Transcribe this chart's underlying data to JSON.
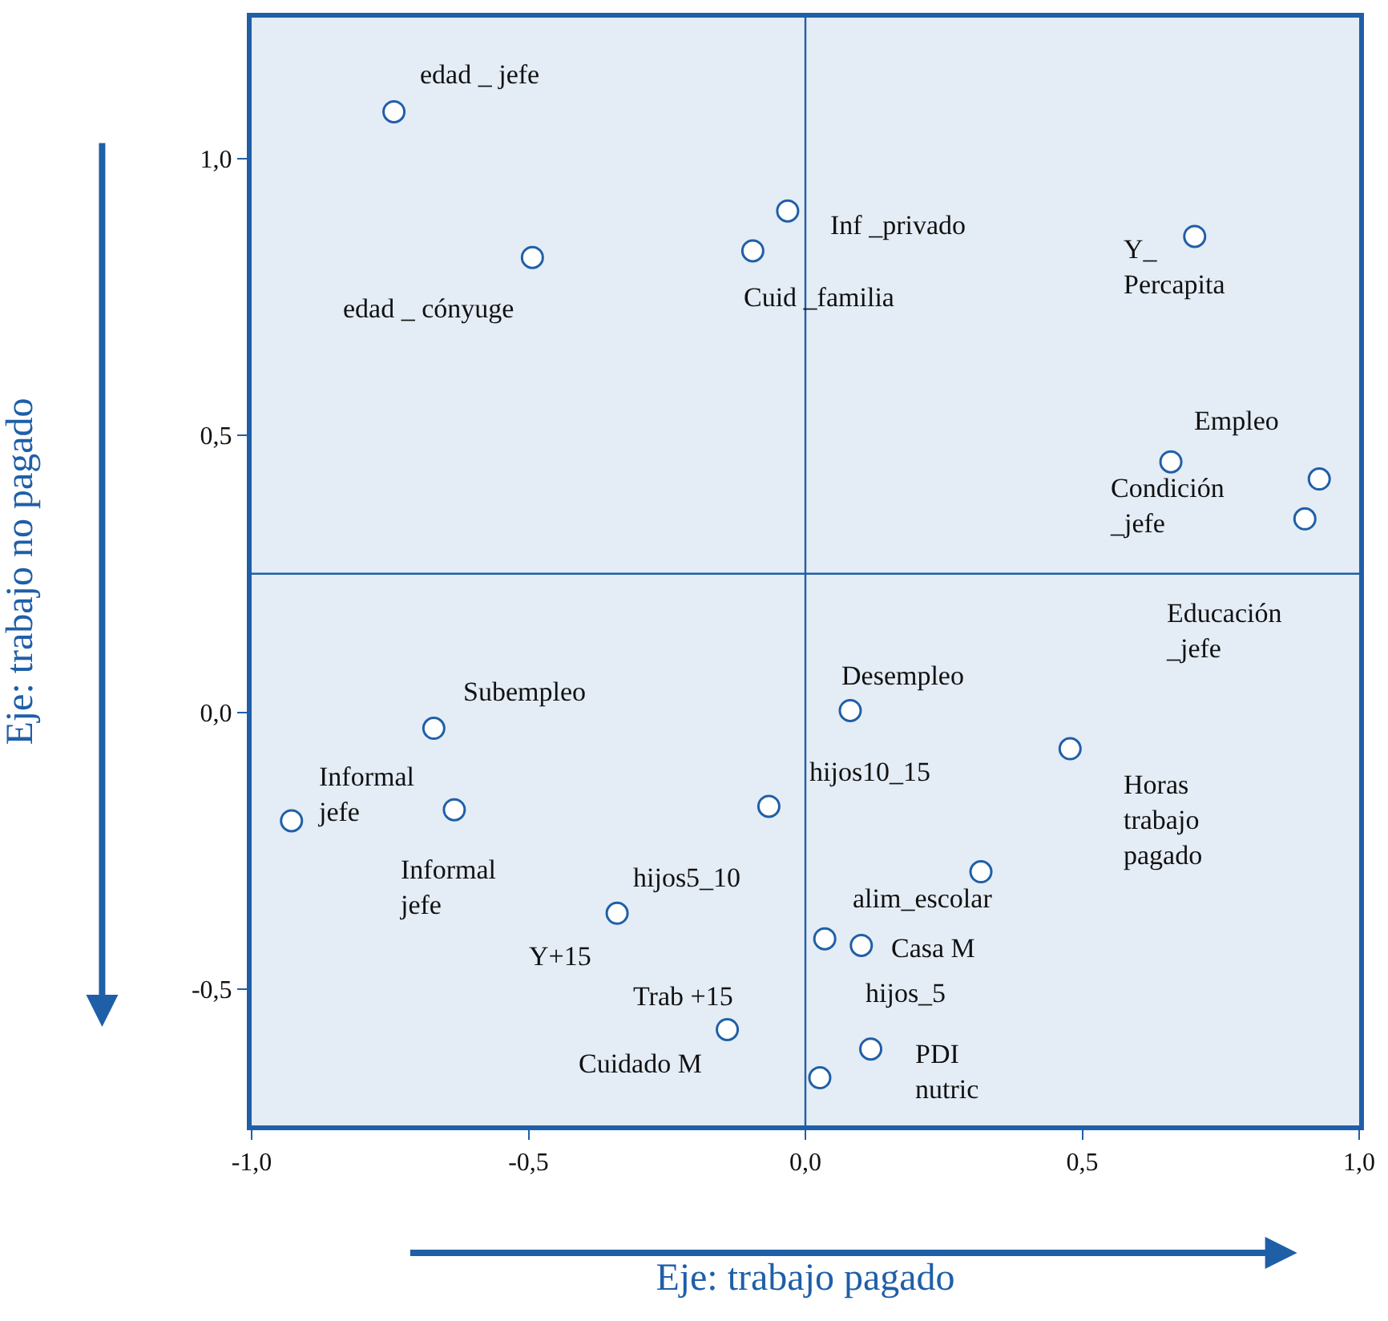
{
  "chart_data": {
    "type": "scatter",
    "xlabel": "Eje: trabajo pagado",
    "ylabel": "Eje: trabajo no pagado",
    "series": [
      {
        "color": "#1f5fa8",
        "x": [
          -0.743,
          -0.493,
          -0.095,
          -0.032,
          0.703,
          0.66,
          0.928,
          0.902,
          -0.671,
          -0.928,
          -0.634,
          -0.066,
          0.081,
          0.478,
          0.317,
          -0.34,
          0.101,
          0.035,
          -0.141,
          0.118,
          0.026
        ],
        "values": [
          1.084,
          0.821,
          0.833,
          0.905,
          0.859,
          0.452,
          0.421,
          0.349,
          -0.029,
          -0.196,
          -0.176,
          -0.17,
          0.003,
          -0.066,
          -0.288,
          -0.363,
          -0.421,
          -0.409,
          -0.573,
          -0.608,
          -0.66
        ]
      }
    ],
    "marker": "circle",
    "xlim": [
      -1.0,
      1.0
    ],
    "ylim": [
      -0.746,
      1.254
    ],
    "xticks": [
      {
        "value": -1.0,
        "label": "-1,0"
      },
      {
        "value": -0.5,
        "label": "-0,5"
      },
      {
        "value": 0.0,
        "label": "0,0"
      },
      {
        "value": 0.5,
        "label": "0,5"
      },
      {
        "value": 1.0,
        "label": "1,0"
      }
    ],
    "yticks": [
      {
        "value": -0.5,
        "label": "-0,5"
      },
      {
        "value": 0.0,
        "label": "0,0"
      },
      {
        "value": 0.5,
        "label": "0,5"
      },
      {
        "value": 1.0,
        "label": "1,0"
      }
    ],
    "ref_lines": [
      {
        "axis": "x",
        "value": 0.0,
        "color": "#1f5fa8"
      },
      {
        "axis": "y",
        "value": 0.25,
        "color": "#1f5fa8"
      }
    ],
    "grid": false,
    "annotations": [
      "edad _ jefe",
      "edad _ cónyuge",
      "Inf _privado",
      "Cuid _familia",
      "Y_\nPercapita",
      "Empleo",
      "Condición\n_jefe",
      "Educación\n_jefe",
      "Subempleo",
      "Informal\njefe",
      "Informal\njefe",
      "Desempleo",
      "hijos10_15",
      "Horas\ntrabajo\npagado",
      "hijos5_10",
      "alim_escolar",
      "Casa M",
      "Y+15",
      "hijos_5",
      "Trab +15",
      "PDI\nnutric",
      "Cuidado M"
    ]
  }
}
